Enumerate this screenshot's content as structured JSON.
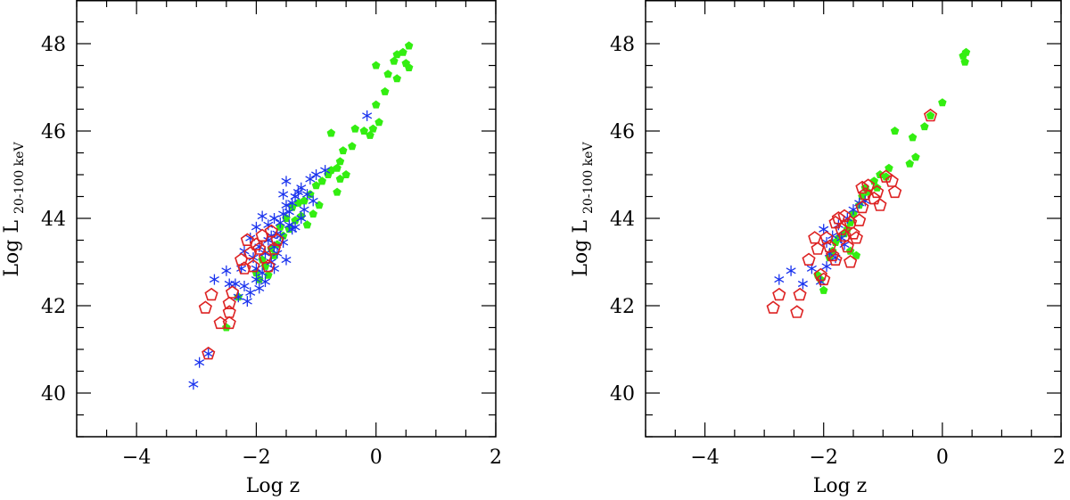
{
  "chart_data": [
    {
      "type": "scatter",
      "xlabel": "Log z",
      "ylabel_main": "Log L",
      "ylabel_sub": "20-100 keV",
      "xlim": [
        -5,
        2
      ],
      "ylim": [
        39,
        49
      ],
      "x_ticks": [
        "-4",
        "-2",
        "0",
        "2"
      ],
      "y_ticks": [
        "40",
        "42",
        "44",
        "46",
        "48"
      ],
      "grid": false,
      "series": [
        {
          "marker": "filled-pentagon",
          "color": "#33ee11",
          "points": [
            [
              0.55,
              47.95
            ],
            [
              0.45,
              47.8
            ],
            [
              0.35,
              47.75
            ],
            [
              0.3,
              47.6
            ],
            [
              0.5,
              47.55
            ],
            [
              0.55,
              47.45
            ],
            [
              0.0,
              47.5
            ],
            [
              0.2,
              47.3
            ],
            [
              0.35,
              47.2
            ],
            [
              0.15,
              46.9
            ],
            [
              0.0,
              46.6
            ],
            [
              0.05,
              46.2
            ],
            [
              -0.05,
              46.05
            ],
            [
              -0.2,
              46.0
            ],
            [
              -0.35,
              46.05
            ],
            [
              -0.1,
              45.9
            ],
            [
              -0.75,
              45.95
            ],
            [
              -0.4,
              45.65
            ],
            [
              -0.55,
              45.55
            ],
            [
              -0.6,
              45.3
            ],
            [
              -0.65,
              45.15
            ],
            [
              -0.75,
              45.1
            ],
            [
              -0.5,
              45.0
            ],
            [
              -0.6,
              44.9
            ],
            [
              -0.8,
              45.0
            ],
            [
              -0.9,
              44.85
            ],
            [
              -1.0,
              44.75
            ],
            [
              -1.1,
              44.55
            ],
            [
              -1.2,
              44.4
            ],
            [
              -1.3,
              44.35
            ],
            [
              -1.4,
              44.25
            ],
            [
              -0.95,
              44.3
            ],
            [
              -1.05,
              44.1
            ],
            [
              -1.25,
              44.05
            ],
            [
              -1.15,
              43.85
            ],
            [
              -1.35,
              43.95
            ],
            [
              -1.45,
              43.75
            ],
            [
              -1.55,
              43.6
            ],
            [
              -1.65,
              43.4
            ],
            [
              -1.75,
              43.3
            ],
            [
              -1.85,
              42.9
            ],
            [
              -1.95,
              42.6
            ],
            [
              -2.0,
              42.75
            ],
            [
              -1.5,
              44.0
            ],
            [
              -0.65,
              44.6
            ],
            [
              -1.6,
              43.8
            ],
            [
              -1.7,
              43.15
            ],
            [
              -1.9,
              43.05
            ],
            [
              -1.8,
              42.7
            ],
            [
              -2.3,
              42.2
            ],
            [
              -2.5,
              41.5
            ]
          ]
        },
        {
          "marker": "star",
          "color": "#1a33ee",
          "points": [
            [
              -3.05,
              40.2
            ],
            [
              -2.95,
              40.7
            ],
            [
              -2.8,
              40.9
            ],
            [
              -2.7,
              42.6
            ],
            [
              -2.5,
              42.8
            ],
            [
              -2.45,
              42.5
            ],
            [
              -2.35,
              42.5
            ],
            [
              -2.3,
              42.2
            ],
            [
              -2.2,
              42.45
            ],
            [
              -2.15,
              42.1
            ],
            [
              -2.1,
              42.3
            ],
            [
              -2.0,
              42.6
            ],
            [
              -1.95,
              42.4
            ],
            [
              -1.9,
              42.75
            ],
            [
              -1.85,
              43.2
            ],
            [
              -1.8,
              43.5
            ],
            [
              -1.75,
              43.0
            ],
            [
              -1.7,
              43.35
            ],
            [
              -1.65,
              43.65
            ],
            [
              -1.6,
              43.9
            ],
            [
              -1.55,
              44.1
            ],
            [
              -1.5,
              44.3
            ],
            [
              -1.45,
              44.15
            ],
            [
              -1.4,
              43.75
            ],
            [
              -1.35,
              44.5
            ],
            [
              -1.3,
              44.6
            ],
            [
              -1.25,
              44.7
            ],
            [
              -1.2,
              44.2
            ],
            [
              -1.15,
              44.55
            ],
            [
              -1.1,
              44.9
            ],
            [
              -1.05,
              44.4
            ],
            [
              -1.0,
              45.0
            ],
            [
              -0.85,
              45.1
            ],
            [
              -1.5,
              44.85
            ],
            [
              -1.45,
              43.85
            ],
            [
              -1.6,
              43.6
            ],
            [
              -1.7,
              44.0
            ],
            [
              -1.75,
              43.6
            ],
            [
              -1.8,
              43.85
            ],
            [
              -1.9,
              44.05
            ],
            [
              -2.0,
              43.8
            ],
            [
              -1.95,
              43.35
            ],
            [
              -2.05,
              43.1
            ],
            [
              -2.1,
              43.55
            ],
            [
              -2.2,
              43.25
            ],
            [
              -1.55,
              43.45
            ],
            [
              -1.65,
              43.2
            ],
            [
              -1.35,
              43.8
            ],
            [
              -1.25,
              44.0
            ],
            [
              -1.85,
              42.55
            ],
            [
              -1.5,
              43.05
            ],
            [
              -0.15,
              46.35
            ],
            [
              -1.4,
              44.35
            ],
            [
              -1.55,
              44.55
            ],
            [
              -2.25,
              42.85
            ],
            [
              -2.0,
              42.85
            ],
            [
              -1.7,
              42.85
            ]
          ]
        },
        {
          "marker": "hollow-pentagon",
          "color": "#dd2222",
          "points": [
            [
              -2.8,
              40.9
            ],
            [
              -2.85,
              41.95
            ],
            [
              -2.75,
              42.25
            ],
            [
              -2.6,
              41.6
            ],
            [
              -2.45,
              41.6
            ],
            [
              -2.45,
              41.85
            ],
            [
              -2.45,
              42.05
            ],
            [
              -2.4,
              42.3
            ],
            [
              -2.25,
              43.05
            ],
            [
              -2.2,
              42.85
            ],
            [
              -2.15,
              43.5
            ],
            [
              -2.1,
              43.2
            ],
            [
              -2.05,
              42.9
            ],
            [
              -2.0,
              43.4
            ],
            [
              -1.95,
              43.3
            ],
            [
              -1.9,
              43.6
            ],
            [
              -1.85,
              43.1
            ],
            [
              -1.8,
              42.9
            ],
            [
              -1.75,
              43.7
            ],
            [
              -1.7,
              43.3
            ],
            [
              -1.65,
              43.5
            ]
          ]
        }
      ]
    },
    {
      "type": "scatter",
      "xlabel": "Log z",
      "ylabel_main": "Log L",
      "ylabel_sub": "20-100 keV",
      "xlim": [
        -5,
        2
      ],
      "ylim": [
        39,
        49
      ],
      "x_ticks": [
        "-4",
        "-2",
        "0",
        "2"
      ],
      "y_ticks": [
        "40",
        "42",
        "44",
        "46",
        "48"
      ],
      "grid": false,
      "series": [
        {
          "marker": "filled-pentagon",
          "color": "#33ee11",
          "points": [
            [
              0.4,
              47.8
            ],
            [
              0.35,
              47.72
            ],
            [
              0.38,
              47.58
            ],
            [
              0.0,
              46.65
            ],
            [
              -0.2,
              46.35
            ],
            [
              -0.3,
              46.1
            ],
            [
              -0.8,
              46.0
            ],
            [
              -0.5,
              45.85
            ],
            [
              -0.45,
              45.4
            ],
            [
              -0.55,
              45.25
            ],
            [
              -0.9,
              45.15
            ],
            [
              -1.05,
              45.0
            ],
            [
              -0.95,
              44.95
            ],
            [
              -1.15,
              44.85
            ],
            [
              -1.1,
              44.7
            ],
            [
              -1.25,
              44.6
            ],
            [
              -1.3,
              44.7
            ],
            [
              -1.35,
              44.5
            ],
            [
              -1.4,
              44.3
            ],
            [
              -1.5,
              44.1
            ],
            [
              -1.55,
              43.9
            ],
            [
              -1.6,
              43.75
            ],
            [
              -1.65,
              43.65
            ],
            [
              -1.75,
              43.55
            ],
            [
              -1.8,
              43.45
            ],
            [
              -1.85,
              43.25
            ],
            [
              -1.9,
              43.1
            ],
            [
              -1.55,
              43.25
            ],
            [
              -1.45,
              43.15
            ],
            [
              -2.0,
              42.35
            ],
            [
              -2.05,
              42.6
            ],
            [
              -2.1,
              42.7
            ]
          ]
        },
        {
          "marker": "star",
          "color": "#1a33ee",
          "points": [
            [
              -2.75,
              42.6
            ],
            [
              -2.55,
              42.8
            ],
            [
              -2.35,
              42.5
            ],
            [
              -2.2,
              42.85
            ],
            [
              -2.05,
              42.55
            ],
            [
              -1.95,
              42.9
            ],
            [
              -1.9,
              43.2
            ],
            [
              -1.85,
              43.6
            ],
            [
              -1.75,
              43.85
            ],
            [
              -1.65,
              43.4
            ],
            [
              -1.6,
              44.0
            ],
            [
              -1.5,
              44.2
            ],
            [
              -1.4,
              44.35
            ],
            [
              -1.3,
              44.4
            ],
            [
              -1.7,
              43.55
            ],
            [
              -2.0,
              43.75
            ],
            [
              -1.95,
              43.45
            ],
            [
              -1.8,
              43.1
            ]
          ]
        },
        {
          "marker": "hollow-pentagon",
          "color": "#dd2222",
          "points": [
            [
              -2.85,
              41.95
            ],
            [
              -2.75,
              42.25
            ],
            [
              -2.45,
              41.85
            ],
            [
              -2.4,
              42.25
            ],
            [
              -2.25,
              43.05
            ],
            [
              -2.15,
              43.55
            ],
            [
              -2.1,
              43.3
            ],
            [
              -2.05,
              42.7
            ],
            [
              -2.0,
              42.6
            ],
            [
              -1.95,
              43.55
            ],
            [
              -1.9,
              43.35
            ],
            [
              -1.85,
              43.15
            ],
            [
              -1.8,
              43.05
            ],
            [
              -1.8,
              43.9
            ],
            [
              -1.75,
              44.0
            ],
            [
              -1.7,
              43.75
            ],
            [
              -1.65,
              44.05
            ],
            [
              -1.6,
              43.35
            ],
            [
              -1.55,
              43.0
            ],
            [
              -1.5,
              43.65
            ],
            [
              -1.45,
              43.55
            ],
            [
              -1.4,
              43.95
            ],
            [
              -1.35,
              44.25
            ],
            [
              -1.35,
              44.7
            ],
            [
              -1.3,
              44.55
            ],
            [
              -1.25,
              44.75
            ],
            [
              -1.15,
              44.45
            ],
            [
              -1.1,
              44.6
            ],
            [
              -1.05,
              44.3
            ],
            [
              -0.95,
              44.95
            ],
            [
              -0.85,
              44.85
            ],
            [
              -0.8,
              44.6
            ],
            [
              -0.2,
              46.35
            ],
            [
              -1.55,
              43.9
            ],
            [
              -1.65,
              43.6
            ]
          ]
        }
      ]
    }
  ]
}
